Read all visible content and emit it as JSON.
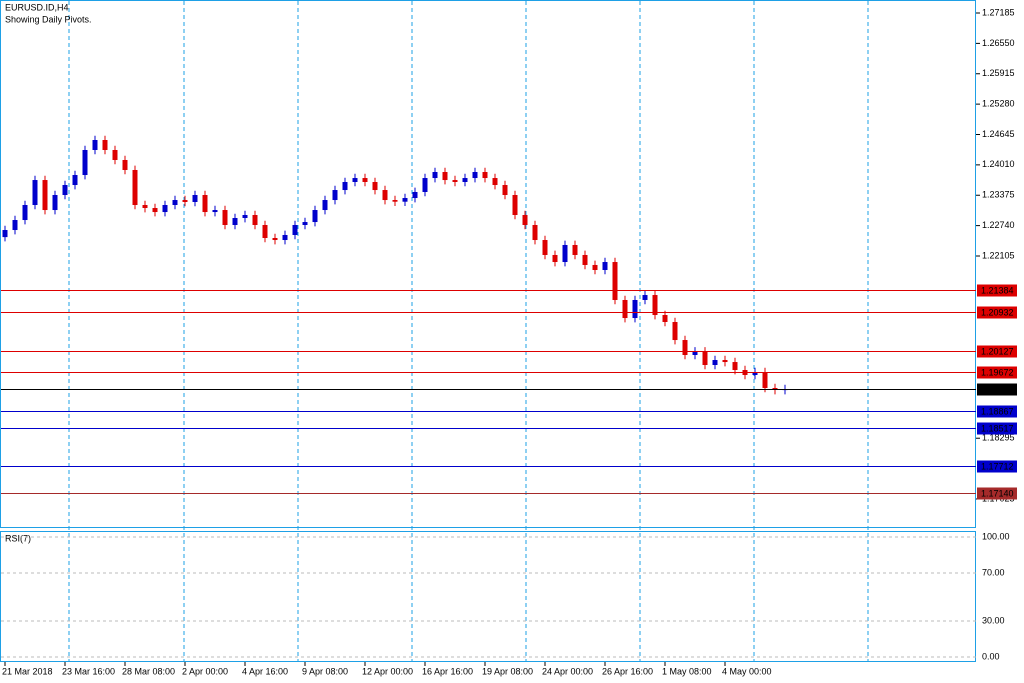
{
  "chart_data": [
    {
      "type": "candlestick",
      "title": "EURUSD.ID,H4",
      "subtitle": "Showing Daily Pivots.",
      "up_color": "#0000cc",
      "down_color": "#dd0000",
      "ylim": [
        1.16418,
        1.27457
      ],
      "yticks": [
        1.27185,
        {
          "value": 1.2655,
          "label": "1.26550"
        },
        1.25915,
        {
          "value": 1.2528,
          "label": "1.25280"
        },
        1.24645,
        {
          "value": 1.2401,
          "label": "1.24010"
        },
        1.23375,
        {
          "value": 1.2274,
          "label": "1.22740"
        },
        1.22105,
        1.18295,
        1.17025
      ],
      "xticks": [
        {
          "value": 0,
          "label": "21 Mar 2018"
        },
        {
          "value": 6,
          "label": "23 Mar 16:00"
        },
        {
          "value": 12,
          "label": "28 Mar 08:00"
        },
        {
          "value": 18,
          "label": "2 Apr 00:00"
        },
        {
          "value": 24,
          "label": "4 Apr 16:00"
        },
        {
          "value": 30,
          "label": "9 Apr 08:00"
        },
        {
          "value": 36,
          "label": "12 Apr 00:00"
        },
        {
          "value": 42,
          "label": "16 Apr 16:00"
        },
        {
          "value": 48,
          "label": "19 Apr 08:00"
        },
        {
          "value": 54,
          "label": "24 Apr 00:00"
        },
        {
          "value": 60,
          "label": "26 Apr 16:00"
        },
        {
          "value": 66,
          "label": "1 May 08:00"
        },
        {
          "value": 72,
          "label": "4 May 00:00"
        }
      ],
      "levels": [
        {
          "value": 1.21384,
          "color": "#dd0000"
        },
        {
          "value": 1.20932,
          "color": "#dd0000"
        },
        {
          "value": 1.20127,
          "color": "#dd0000"
        },
        {
          "value": 1.19672,
          "color": "#dd0000"
        },
        {
          "value": 1.19322,
          "color": "#000000"
        },
        {
          "value": 1.18867,
          "color": "#0000cc"
        },
        {
          "value": 1.18517,
          "color": "#0000cc"
        },
        {
          "value": 1.17712,
          "color": "#0000cc"
        },
        {
          "value": 1.1714,
          "label": "1.17140",
          "color": "#a52a2a"
        }
      ],
      "open": [
        1.225,
        1.22648,
        1.22857,
        1.23171,
        1.23693,
        1.23066,
        1.2338,
        1.23589,
        1.23798,
        1.24321,
        1.2453,
        1.24321,
        1.24112,
        1.23903,
        1.23171,
        1.23108,
        1.23024,
        1.23171,
        1.23275,
        1.23234,
        1.2338,
        1.23024,
        1.23066,
        1.22753,
        1.22899,
        1.22962,
        1.22753,
        1.22481,
        1.22439,
        1.22544,
        1.22753,
        1.22815,
        1.23066,
        1.23275,
        1.23484,
        1.23652,
        1.23735,
        1.23652,
        1.23484,
        1.23275,
        1.2324,
        1.23317,
        1.23443,
        1.23735,
        1.23861,
        1.23693,
        1.23652,
        1.23735,
        1.23861,
        1.23735,
        1.23589,
        1.2338,
        1.22962,
        1.22753,
        1.22439,
        1.22126,
        1.21979,
        1.22335,
        1.22126,
        1.21917,
        1.21812,
        1.21979,
        1.21185,
        1.20808,
        1.21185,
        1.21289,
        1.20871,
        1.20725,
        1.20348,
        1.20035,
        1.2011,
        1.19826,
        1.1993,
        1.19888,
        1.19721,
        1.19617,
        1.19679,
        1.19345,
        1.19303
      ],
      "high": [
        1.22738,
        1.22947,
        1.23261,
        1.23783,
        1.23783,
        1.2347,
        1.23679,
        1.23888,
        1.24411,
        1.2462,
        1.2462,
        1.24411,
        1.24202,
        1.23993,
        1.23261,
        1.23198,
        1.23261,
        1.23365,
        1.23365,
        1.2347,
        1.2347,
        1.23156,
        1.23156,
        1.22989,
        1.23052,
        1.23052,
        1.22843,
        1.22571,
        1.22634,
        1.22843,
        1.22905,
        1.23156,
        1.23365,
        1.23574,
        1.23742,
        1.23825,
        1.23825,
        1.23742,
        1.23574,
        1.23365,
        1.23407,
        1.23533,
        1.23825,
        1.23951,
        1.23951,
        1.23783,
        1.23825,
        1.23951,
        1.23951,
        1.23825,
        1.23679,
        1.2347,
        1.23052,
        1.22843,
        1.22529,
        1.22216,
        1.22425,
        1.22425,
        1.22216,
        1.22007,
        1.22069,
        1.22069,
        1.21275,
        1.21275,
        1.21379,
        1.21379,
        1.20961,
        1.20815,
        1.20438,
        1.202,
        1.202,
        1.2002,
        1.2002,
        1.19978,
        1.19811,
        1.19769,
        1.19769,
        1.19435,
        1.19412
      ],
      "low": [
        1.2241,
        1.22558,
        1.22767,
        1.23081,
        1.22976,
        1.22976,
        1.2329,
        1.23499,
        1.23708,
        1.24231,
        1.24231,
        1.24022,
        1.23813,
        1.23081,
        1.23018,
        1.22934,
        1.22934,
        1.23081,
        1.23144,
        1.23144,
        1.22934,
        1.22934,
        1.22663,
        1.22663,
        1.22809,
        1.22663,
        1.22391,
        1.22349,
        1.22349,
        1.22454,
        1.22663,
        1.22725,
        1.22976,
        1.23185,
        1.23394,
        1.23562,
        1.23562,
        1.23394,
        1.23185,
        1.2315,
        1.2315,
        1.23227,
        1.23353,
        1.23645,
        1.23603,
        1.23562,
        1.23562,
        1.23645,
        1.23645,
        1.23499,
        1.2329,
        1.22872,
        1.22663,
        1.22349,
        1.22036,
        1.21889,
        1.21889,
        1.22036,
        1.21827,
        1.21722,
        1.21722,
        1.21095,
        1.20718,
        1.20718,
        1.21095,
        1.20781,
        1.20635,
        1.20258,
        1.19945,
        1.19945,
        1.19736,
        1.19736,
        1.19798,
        1.19631,
        1.19527,
        1.19527,
        1.19255,
        1.19213,
        1.19213
      ],
      "close": [
        1.22648,
        1.22857,
        1.23171,
        1.23693,
        1.23066,
        1.2338,
        1.23589,
        1.23798,
        1.24321,
        1.2453,
        1.24321,
        1.24112,
        1.23903,
        1.23171,
        1.23108,
        1.23024,
        1.23171,
        1.23275,
        1.23234,
        1.2338,
        1.23024,
        1.23066,
        1.22753,
        1.22899,
        1.22962,
        1.22753,
        1.22481,
        1.22439,
        1.22544,
        1.22753,
        1.22815,
        1.23066,
        1.23275,
        1.23484,
        1.23652,
        1.23735,
        1.23652,
        1.23484,
        1.23275,
        1.2324,
        1.23317,
        1.23443,
        1.23735,
        1.23861,
        1.23693,
        1.23652,
        1.23735,
        1.23861,
        1.23735,
        1.23589,
        1.2338,
        1.22962,
        1.22753,
        1.22439,
        1.22126,
        1.21979,
        1.22335,
        1.22126,
        1.21917,
        1.21812,
        1.21979,
        1.21185,
        1.20808,
        1.21185,
        1.21289,
        1.20871,
        1.20725,
        1.20348,
        1.20035,
        1.2011,
        1.19826,
        1.1993,
        1.19888,
        1.19721,
        1.19617,
        1.19679,
        1.19345,
        1.19303,
        1.19322
      ]
    },
    {
      "type": "indicator",
      "title": "RSI(7)",
      "ylim": [
        0,
        100
      ],
      "yticks": [
        {
          "value": 100,
          "label": "100.00"
        },
        {
          "value": 70,
          "label": "70.00"
        },
        {
          "value": 30,
          "label": "30.00"
        },
        {
          "value": 0,
          "label": "0.00"
        }
      ],
      "grid": true
    }
  ]
}
